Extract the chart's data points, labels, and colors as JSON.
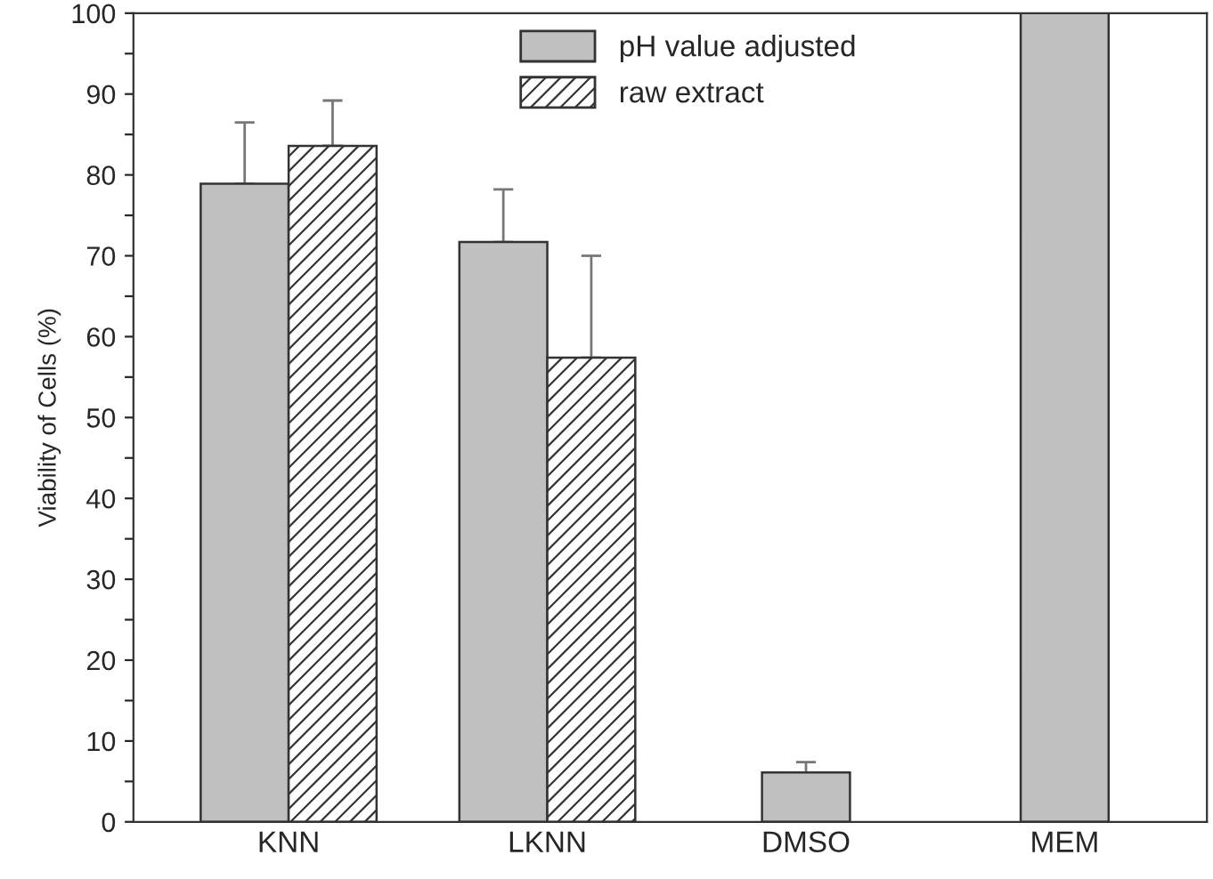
{
  "chart_data": {
    "type": "bar",
    "ylabel": "Viability of Cells (%)",
    "categories": [
      "KNN",
      "LKNN",
      "DMSO",
      "MEM"
    ],
    "series": [
      {
        "name": "pH value adjusted",
        "color": "#c0c0c0",
        "values": [
          78.9,
          71.7,
          6.1,
          100
        ],
        "errors": [
          [
            78.9,
            86.5
          ],
          [
            71.7,
            78.2
          ],
          [
            6.1,
            7.4
          ],
          null
        ]
      },
      {
        "name": "raw extract",
        "color": "#333333",
        "values": [
          83.6,
          57.4,
          null,
          null
        ],
        "errors": [
          [
            83.6,
            89.2
          ],
          [
            57.4,
            70.0
          ],
          null,
          null
        ]
      }
    ],
    "ylim": [
      0,
      100
    ],
    "yticks": [
      0,
      {
        "value": 5,
        "label": null
      },
      10,
      {
        "value": 15,
        "label": null
      },
      20,
      {
        "value": 25,
        "label": null
      },
      30,
      {
        "value": 35,
        "label": null
      },
      40,
      {
        "value": 45,
        "label": null
      },
      50,
      {
        "value": 55,
        "label": null
      },
      60,
      {
        "value": 65,
        "label": null
      },
      70,
      {
        "value": 75,
        "label": null
      },
      80,
      {
        "value": 85,
        "label": null
      },
      90,
      {
        "value": 95,
        "label": null
      },
      100
    ],
    "grid": false,
    "legend": "top right"
  }
}
